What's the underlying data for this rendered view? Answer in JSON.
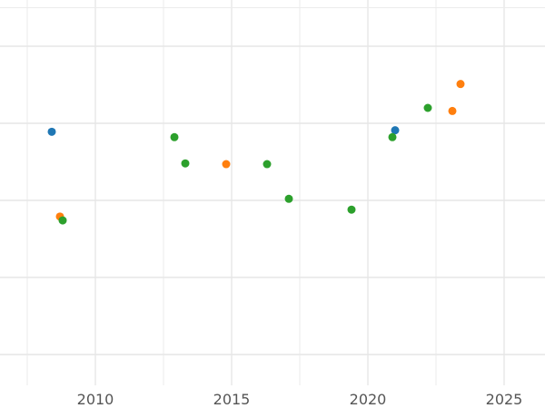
{
  "chart_data": {
    "type": "scatter",
    "title": "",
    "xlabel": "",
    "ylabel": "",
    "xlim": [
      2006.5,
      2026.5
    ],
    "ylim": [
      0,
      5
    ],
    "grid": true,
    "legend": "none",
    "x_ticks": [
      2010,
      2015,
      2020,
      2025
    ],
    "x_tick_labels": [
      "2010",
      "2015",
      "2020",
      "2025"
    ],
    "y_ticks": [
      0.4,
      1.4,
      2.4,
      3.4,
      4.4
    ],
    "y_tick_labels": [
      "",
      "",
      "",
      "",
      ""
    ],
    "series": [
      {
        "color": "#1f77b4",
        "points": [
          {
            "x": 2008.4,
            "y": 3.29
          },
          {
            "x": 2021.0,
            "y": 3.31
          }
        ]
      },
      {
        "color": "#ff7f0e",
        "points": [
          {
            "x": 2008.7,
            "y": 2.19
          },
          {
            "x": 2014.8,
            "y": 2.87
          },
          {
            "x": 2023.1,
            "y": 3.56
          },
          {
            "x": 2023.4,
            "y": 3.91
          }
        ]
      },
      {
        "color": "#2ca02c",
        "points": [
          {
            "x": 2008.8,
            "y": 2.14
          },
          {
            "x": 2012.9,
            "y": 3.22
          },
          {
            "x": 2013.3,
            "y": 2.88
          },
          {
            "x": 2016.3,
            "y": 2.87
          },
          {
            "x": 2017.1,
            "y": 2.42
          },
          {
            "x": 2019.4,
            "y": 2.28
          },
          {
            "x": 2020.9,
            "y": 3.22
          },
          {
            "x": 2022.2,
            "y": 3.6
          }
        ]
      }
    ]
  }
}
